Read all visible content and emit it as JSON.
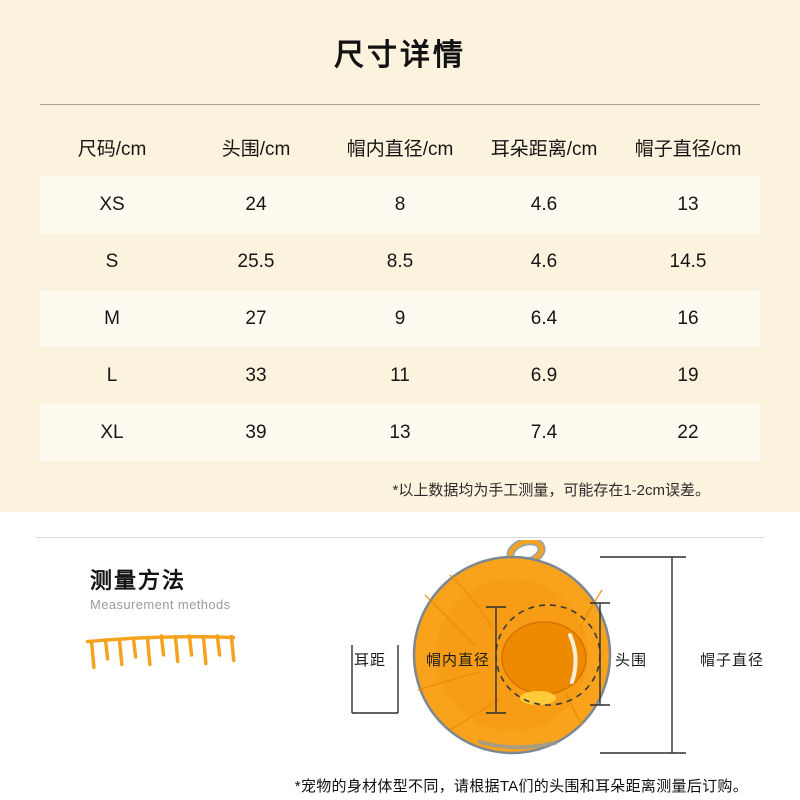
{
  "colors": {
    "cream_bg": "#FCF3DE",
    "row_alt": "#FEFAF0",
    "accent_orange": "#F5A31F",
    "hat_orange": "#F9A21C",
    "hat_dark_orange": "#EE8A00"
  },
  "size_section": {
    "title": "尺寸详情",
    "table": {
      "headers": [
        "尺码/cm",
        "头围/cm",
        "帽内直径/cm",
        "耳朵距离/cm",
        "帽子直径/cm"
      ],
      "rows": [
        [
          "XS",
          "24",
          "8",
          "4.6",
          "13"
        ],
        [
          "S",
          "25.5",
          "8.5",
          "4.6",
          "14.5"
        ],
        [
          "M",
          "27",
          "9",
          "6.4",
          "16"
        ],
        [
          "L",
          "33",
          "11",
          "6.9",
          "19"
        ],
        [
          "XL",
          "39",
          "13",
          "7.4",
          "22"
        ]
      ]
    },
    "note": "*以上数据均为手工测量，可能存在1-2cm误差。"
  },
  "measure_section": {
    "title": "测量方法",
    "subtitle": "Measurement methods",
    "labels": {
      "ear_distance": "耳距",
      "inner_diameter": "帽内直径",
      "head_circumference": "头围",
      "hat_diameter": "帽子直径"
    },
    "note": "*宠物的身材体型不同，请根据TA们的头围和耳朵距离测量后订购。"
  }
}
